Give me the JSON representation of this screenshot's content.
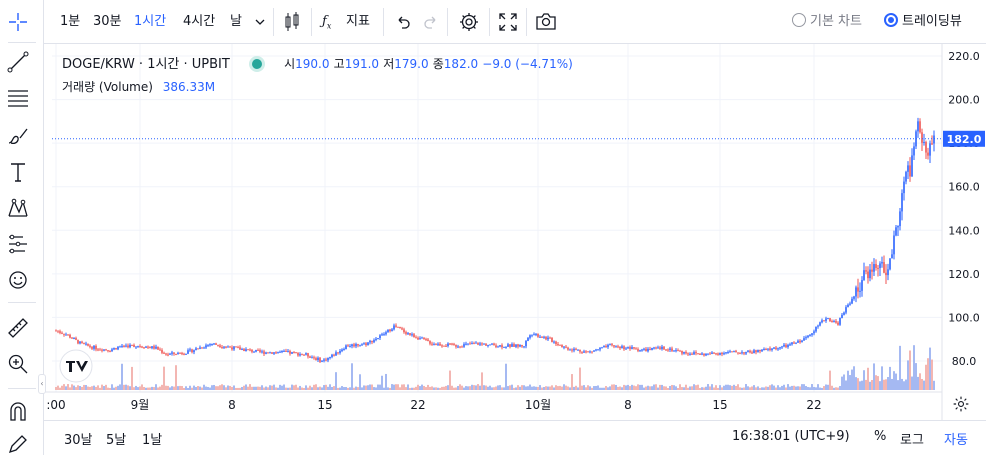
{
  "toolbar": {
    "intervals": [
      "1분",
      "30분",
      "1시간",
      "4시간",
      "날"
    ],
    "active_interval": "1시간",
    "indicators_label": "지표",
    "chart_modes": [
      "기본 차트",
      "트레이딩뷰"
    ],
    "active_mode": "트레이딩뷰"
  },
  "legend": {
    "symbol": "DOGE/KRW · 1시간 · UPBIT",
    "open_label": "시",
    "open": "190.0",
    "high_label": "고",
    "high": "191.0",
    "low_label": "저",
    "low": "179.0",
    "close_label": "종",
    "close": "182.0",
    "change": "−9.0 (−4.71%)",
    "volume_label": "거래량 (Volume)",
    "volume": "386.33M",
    "status_dot_color": "#26a69a"
  },
  "price_axis": {
    "ticks": [
      "220.0",
      "200.0",
      "180.0",
      "160.0",
      "140.0",
      "120.0",
      "100.0",
      "80.0"
    ],
    "current_price": "182.0",
    "current_price_color": "#2962ff"
  },
  "time_axis": {
    "ticks": [
      ":00",
      "9월",
      "8",
      "15",
      "22",
      "10월",
      "8",
      "15",
      "22"
    ]
  },
  "bottom": {
    "ranges": [
      "30날",
      "5날",
      "1날"
    ],
    "clock": "16:38:01 (UTC+9)",
    "percent_label": "%",
    "log_label": "로그",
    "auto_label": "자동"
  },
  "icons": {
    "left_toolbar": [
      "crosshair-icon",
      "trend-line-icon",
      "fib-retracement-icon",
      "brush-icon",
      "text-icon",
      "pattern-icon",
      "prediction-icon",
      "emoji-icon",
      "ruler-icon",
      "zoom-in-icon",
      "magnet-icon",
      "pencil-lock-icon"
    ],
    "top_toolbar": [
      "chevron-down-icon",
      "candles-icon",
      "fx-icon",
      "undo-icon",
      "redo-icon",
      "settings-icon",
      "fullscreen-icon",
      "camera-icon"
    ],
    "watermark": "tradingview-logo-icon"
  },
  "colors": {
    "up": "#2962ff",
    "down": "#ef5350",
    "volume_up": "#8fa8ef",
    "volume_down": "#f0a49f"
  },
  "chart_data": {
    "type": "candlestick",
    "interval": "1시간",
    "x_ticks": [
      ":00",
      "9월",
      "8",
      "15",
      "22",
      "10월",
      "8",
      "15",
      "22"
    ],
    "ylim": [
      65,
      225
    ],
    "y_ticks": [
      220,
      200,
      180,
      160,
      140,
      120,
      100,
      80
    ],
    "last": {
      "open": 190.0,
      "high": 191.0,
      "low": 179.0,
      "close": 182.0
    },
    "current_price": 182.0,
    "volume_last": "386.33M",
    "path": [
      [
        0,
        94
      ],
      [
        10,
        92
      ],
      [
        22,
        88
      ],
      [
        35,
        86
      ],
      [
        48,
        85
      ],
      [
        60,
        87
      ],
      [
        75,
        87
      ],
      [
        90,
        86
      ],
      [
        100,
        83
      ],
      [
        118,
        84
      ],
      [
        140,
        88
      ],
      [
        160,
        86
      ],
      [
        185,
        84
      ],
      [
        205,
        84
      ],
      [
        225,
        83
      ],
      [
        240,
        80
      ],
      [
        248,
        82
      ],
      [
        262,
        87
      ],
      [
        280,
        88
      ],
      [
        295,
        92
      ],
      [
        305,
        96
      ],
      [
        320,
        92
      ],
      [
        340,
        88
      ],
      [
        360,
        87
      ],
      [
        380,
        88
      ],
      [
        400,
        87
      ],
      [
        422,
        87
      ],
      [
        428,
        93
      ],
      [
        445,
        90
      ],
      [
        460,
        86
      ],
      [
        480,
        84
      ],
      [
        500,
        87
      ],
      [
        515,
        86
      ],
      [
        530,
        85
      ],
      [
        550,
        86
      ],
      [
        565,
        84
      ],
      [
        585,
        83
      ],
      [
        605,
        84
      ],
      [
        625,
        84
      ],
      [
        640,
        85
      ],
      [
        660,
        87
      ],
      [
        675,
        90
      ],
      [
        685,
        95
      ],
      [
        695,
        100
      ],
      [
        705,
        97
      ],
      [
        712,
        104
      ],
      [
        720,
        110
      ],
      [
        728,
        118
      ],
      [
        735,
        122
      ],
      [
        742,
        125
      ],
      [
        749,
        119
      ],
      [
        755,
        132
      ],
      [
        762,
        152
      ],
      [
        768,
        170
      ],
      [
        770,
        165
      ],
      [
        775,
        182
      ],
      [
        778,
        188
      ],
      [
        780,
        186
      ],
      [
        782,
        180
      ],
      [
        785,
        172
      ],
      [
        789,
        178
      ],
      [
        792,
        182
      ]
    ],
    "y_scale": "linear",
    "grid": true
  }
}
